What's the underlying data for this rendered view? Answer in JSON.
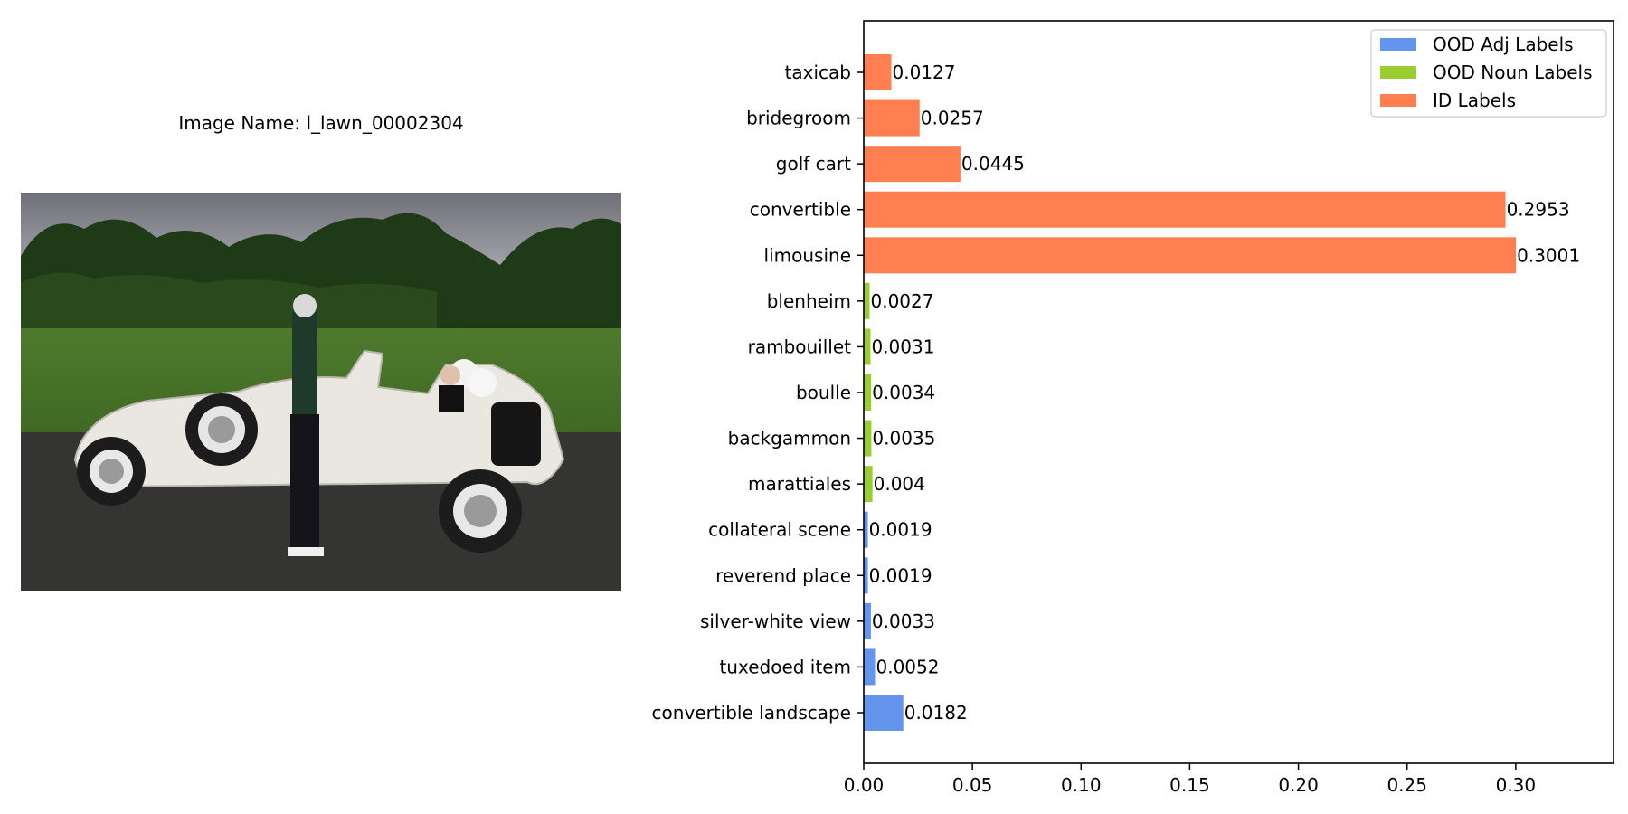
{
  "image_caption": "Image Name: l_lawn_00002304",
  "chart_data": {
    "type": "bar",
    "orientation": "horizontal",
    "title": "",
    "xlabel": "",
    "ylabel": "",
    "xlim": [
      0,
      0.345
    ],
    "xticks": [
      "0.00",
      "0.05",
      "0.10",
      "0.15",
      "0.20",
      "0.25",
      "0.30"
    ],
    "legend_position": "top-right",
    "legend": [
      {
        "label": "OOD Adj Labels",
        "color": "#6495ED"
      },
      {
        "label": "OOD Noun Labels",
        "color": "#9ACD32"
      },
      {
        "label": "ID Labels",
        "color": "#FF7F50"
      }
    ],
    "categories": [
      "taxicab",
      "bridegroom",
      "golf cart",
      "convertible",
      "limousine",
      "blenheim",
      "rambouillet",
      "boulle",
      "backgammon",
      "marattiales",
      "collateral scene",
      "reverend place",
      "silver-white view",
      "tuxedoed item",
      "convertible landscape"
    ],
    "values": [
      0.0127,
      0.0257,
      0.0445,
      0.2953,
      0.3001,
      0.0027,
      0.0031,
      0.0034,
      0.0035,
      0.004,
      0.0019,
      0.0019,
      0.0033,
      0.0052,
      0.0182
    ],
    "value_labels": [
      "0.0127",
      "0.0257",
      "0.0445",
      "0.2953",
      "0.3001",
      "0.0027",
      "0.0031",
      "0.0034",
      "0.0035",
      "0.004",
      "0.0019",
      "0.0019",
      "0.0033",
      "0.0052",
      "0.0182"
    ],
    "groups": [
      "ID Labels",
      "ID Labels",
      "ID Labels",
      "ID Labels",
      "ID Labels",
      "OOD Noun Labels",
      "OOD Noun Labels",
      "OOD Noun Labels",
      "OOD Noun Labels",
      "OOD Noun Labels",
      "OOD Adj Labels",
      "OOD Adj Labels",
      "OOD Adj Labels",
      "OOD Adj Labels",
      "OOD Adj Labels"
    ]
  }
}
